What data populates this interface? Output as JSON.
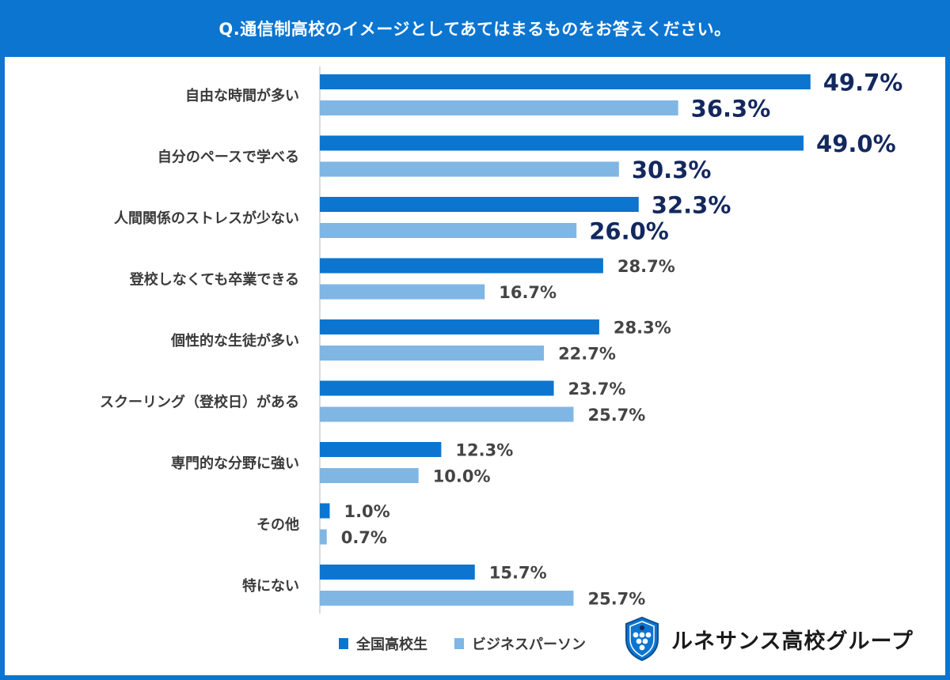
{
  "header": {
    "question": "Q.通信制高校のイメージとしてあてはまるものをお答えください。"
  },
  "chart_data": {
    "type": "bar",
    "orientation": "horizontal",
    "title": "Q.通信制高校のイメージとしてあてはまるものをお答えください。",
    "categories": [
      "自由な時間が多い",
      "自分のペースで学べる",
      "人間関係のストレスが少ない",
      "登校しなくても卒業できる",
      "個性的な生徒が多い",
      "スクーリング（登校日）がある",
      "専門的な分野に強い",
      "その他",
      "特にない"
    ],
    "series": [
      {
        "name": "全国高校生",
        "color": "#0b75d0",
        "values": [
          49.7,
          49.0,
          32.3,
          28.7,
          28.3,
          23.7,
          12.3,
          1.0,
          15.7
        ],
        "labels": [
          "49.7%",
          "49.0%",
          "32.3%",
          "28.7%",
          "28.3%",
          "23.7%",
          "12.3%",
          "1.0%",
          "15.7%"
        ]
      },
      {
        "name": "ビジネスパーソン",
        "color": "#7fb6e4",
        "values": [
          36.3,
          30.3,
          26.0,
          16.7,
          22.7,
          25.7,
          10.0,
          0.7,
          25.7
        ],
        "labels": [
          "36.3%",
          "30.3%",
          "26.0%",
          "16.7%",
          "22.7%",
          "25.7%",
          "10.0%",
          "0.7%",
          "25.7%"
        ]
      }
    ],
    "highlight_rows": 3,
    "highlight_color": "#13285e",
    "unit": "%",
    "legend": "bottom"
  },
  "legend": {
    "series_a": "全国高校生",
    "series_b": "ビジネスパーソン"
  },
  "brand": {
    "name": "ルネサンス高校グループ",
    "logo": "shield-logo-icon"
  }
}
